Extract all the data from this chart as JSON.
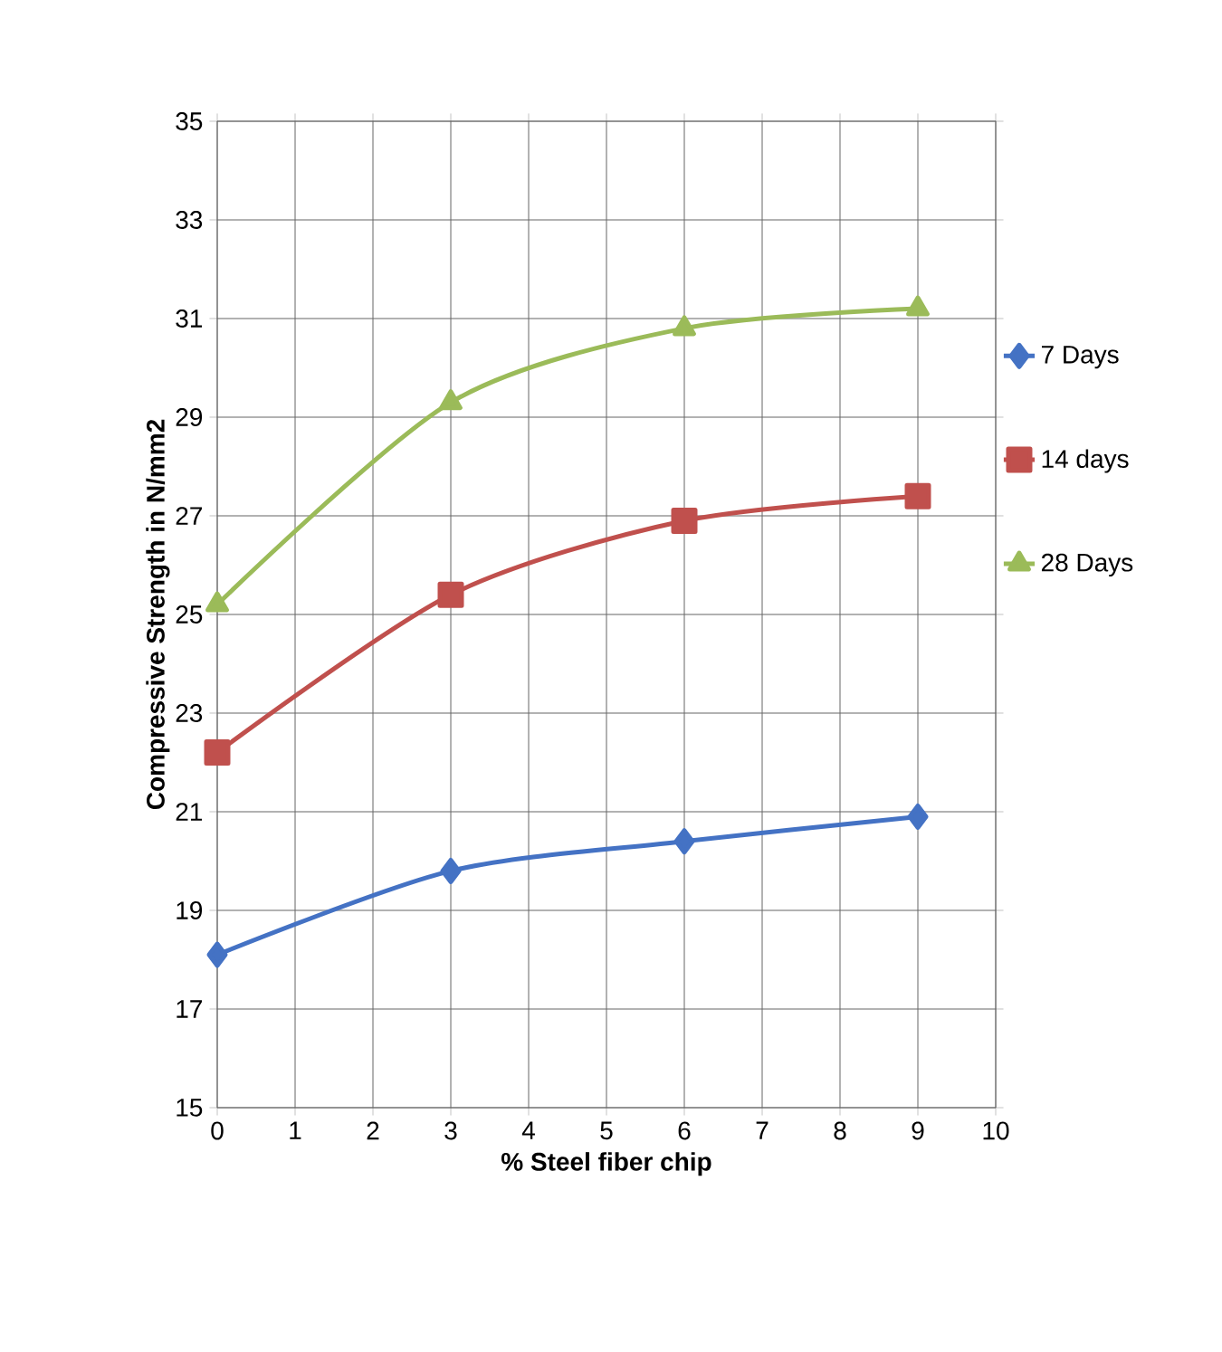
{
  "chart_data": {
    "type": "line",
    "xlabel": "% Steel fiber chip",
    "ylabel": "Compressive Strength in N/mm2",
    "x": [
      0,
      3,
      6,
      9
    ],
    "series": [
      {
        "name": "7 Days",
        "color": "#4472c4",
        "marker": "diamond",
        "values": [
          18.1,
          19.8,
          20.4,
          20.9
        ]
      },
      {
        "name": "14 days",
        "color": "#c0504d",
        "marker": "square",
        "values": [
          22.2,
          25.4,
          26.9,
          27.4
        ]
      },
      {
        "name": "28 Days",
        "color": "#9bbb59",
        "marker": "triangle",
        "values": [
          25.2,
          29.3,
          30.8,
          31.2
        ]
      }
    ],
    "xlim": [
      0,
      10
    ],
    "xticks": [
      0,
      1,
      2,
      3,
      4,
      5,
      6,
      7,
      8,
      9,
      10
    ],
    "ylim": [
      15,
      35
    ],
    "yticks": [
      15,
      17,
      19,
      21,
      23,
      25,
      27,
      29,
      31,
      33,
      35
    ],
    "grid": true,
    "legend": "right",
    "line_style": "solid"
  }
}
